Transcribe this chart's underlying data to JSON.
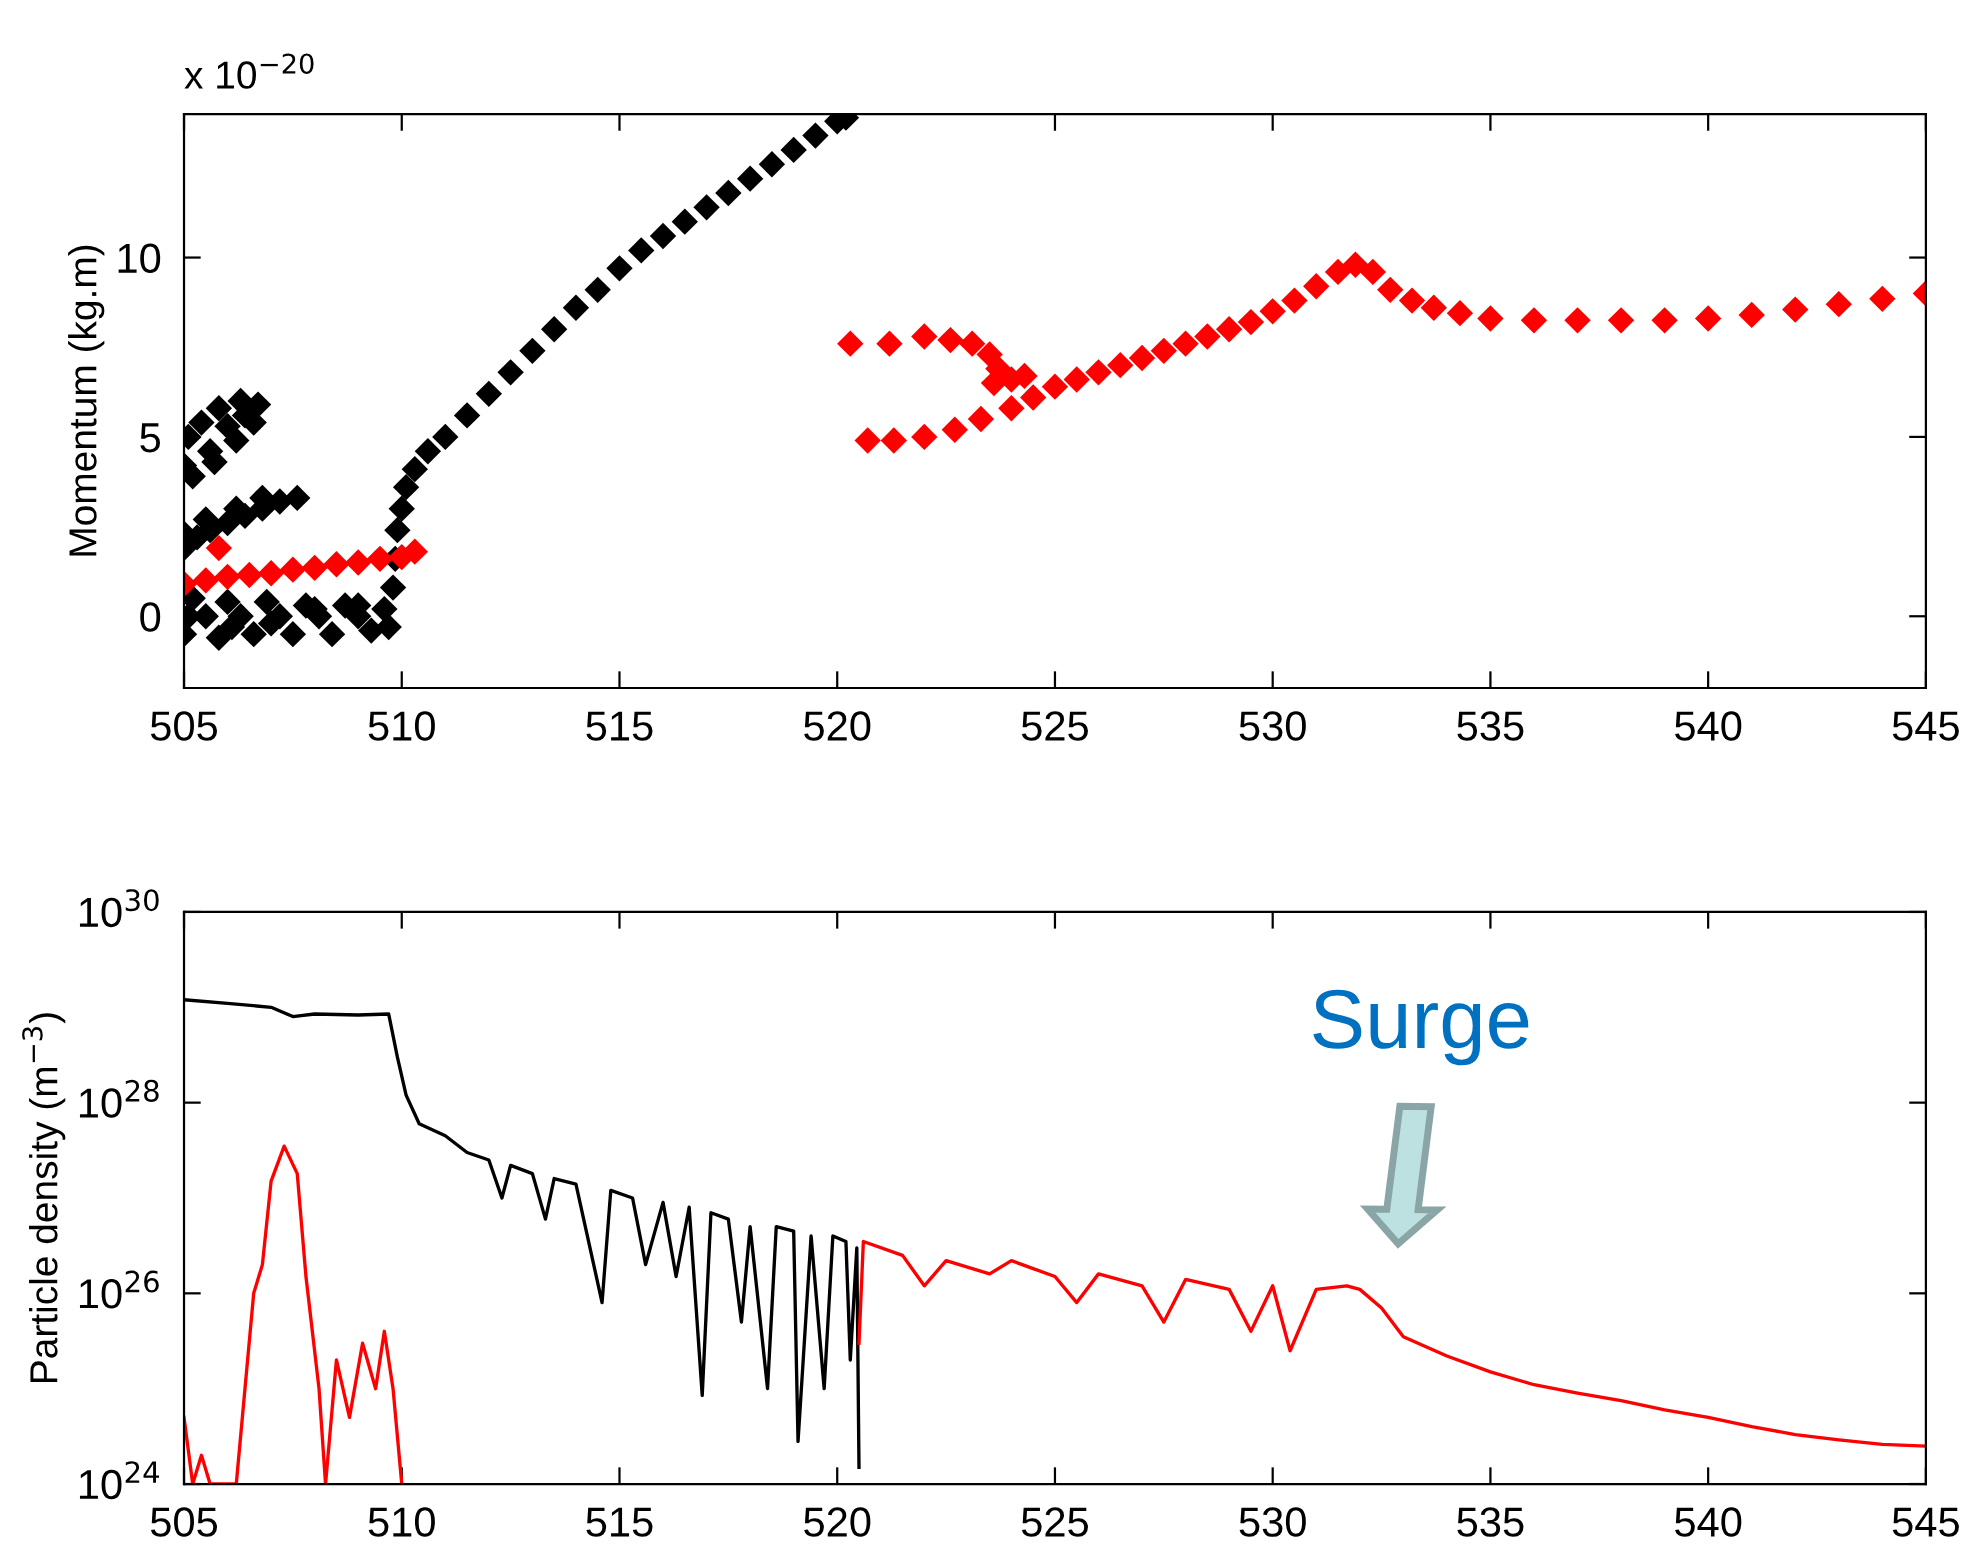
{
  "chart_data": [
    {
      "type": "scatter",
      "marker": "diamond",
      "ylabel": "Momentum (kg.m)",
      "annotations": [
        "x 10$^{−20}$"
      ],
      "xlim": [
        505,
        545
      ],
      "ylim": [
        -2,
        14
      ],
      "xticks": [
        505,
        510,
        515,
        520,
        525,
        530,
        535,
        540,
        545
      ],
      "yticks": [
        0,
        5,
        10
      ],
      "grid": false,
      "series": [
        {
          "color": "#000000",
          "x": [
            505,
            505.1,
            505.4,
            505.8,
            506.3,
            506.7,
            506.6,
            506.2,
            505.7,
            505.2,
            505.6,
            506.0,
            506.4,
            505,
            505.3,
            505.6,
            506,
            506.4,
            506.8,
            507.2,
            507.6,
            505,
            505.5,
            506.2,
            506.8,
            505,
            505.2,
            505.5,
            505.8,
            506,
            506.3,
            506.6,
            506.9,
            507.2,
            507.5,
            507.8,
            508.1,
            508.4,
            508.7,
            509,
            509.3,
            509.6,
            509.7,
            505.1,
            506.1,
            507,
            508,
            509,
            509.8,
            509.85,
            509.9,
            510,
            510.1,
            510.3,
            510.6,
            511,
            511.5,
            512,
            512.5,
            513,
            513.5,
            514,
            514.5,
            515,
            515.5,
            516,
            516.5,
            517,
            517.5,
            518,
            518.5,
            519,
            519.5,
            520,
            520.2
          ],
          "values": [
            4.2,
            5.0,
            5.4,
            5.8,
            6.0,
            5.9,
            5.4,
            4.9,
            4.3,
            3.9,
            4.6,
            5.3,
            5.6,
            1.9,
            2.2,
            2.4,
            2.6,
            2.8,
            3.0,
            3.2,
            3.3,
            2.3,
            2.7,
            3.0,
            3.3,
            -0.5,
            0.5,
            0,
            -0.6,
            0.4,
            0,
            -0.5,
            0.4,
            0,
            -0.5,
            0.3,
            0,
            -0.5,
            0.3,
            0,
            -0.4,
            0.2,
            -0.3,
            0,
            -0.3,
            -0.2,
            0.2,
            0.3,
            0.8,
            1.6,
            2.4,
            3.0,
            3.6,
            4.1,
            4.6,
            5.0,
            5.6,
            6.2,
            6.8,
            7.4,
            8.0,
            8.6,
            9.1,
            9.7,
            10.2,
            10.6,
            11.0,
            11.4,
            11.8,
            12.2,
            12.6,
            13.0,
            13.4,
            13.8,
            13.9
          ]
        },
        {
          "color": "#ff0000",
          "x": [
            505,
            505.5,
            506,
            506.5,
            507,
            507.5,
            508,
            508.5,
            509,
            509.5,
            510,
            510.3,
            505.8,
            520.3,
            521.2,
            522,
            522.6,
            523.1,
            523.5,
            523.7,
            523.6,
            524.0,
            524.3,
            520.7,
            521.3,
            522,
            522.7,
            523.3,
            524,
            524.5,
            525,
            525.5,
            526,
            526.5,
            527,
            527.5,
            528,
            528.5,
            529,
            529.5,
            530,
            530.5,
            531,
            531.5,
            531.9,
            532.3,
            532.7,
            533.2,
            533.7,
            534.3,
            535,
            536,
            537,
            538,
            539,
            540,
            541,
            542,
            543,
            544,
            545
          ],
          "values": [
            0.9,
            1.0,
            1.1,
            1.15,
            1.2,
            1.3,
            1.35,
            1.45,
            1.5,
            1.6,
            1.65,
            1.8,
            1.9,
            7.6,
            7.6,
            7.8,
            7.7,
            7.6,
            7.3,
            6.9,
            6.5,
            6.6,
            6.7,
            4.9,
            4.9,
            5.0,
            5.2,
            5.5,
            5.8,
            6.1,
            6.4,
            6.6,
            6.8,
            7.0,
            7.2,
            7.4,
            7.6,
            7.8,
            8.0,
            8.2,
            8.5,
            8.8,
            9.2,
            9.6,
            9.8,
            9.6,
            9.1,
            8.8,
            8.6,
            8.45,
            8.3,
            8.25,
            8.25,
            8.25,
            8.25,
            8.3,
            8.4,
            8.55,
            8.7,
            8.85,
            9.0
          ]
        }
      ]
    },
    {
      "type": "line",
      "log": true,
      "ylabel": "Particle density (m$^{−3}$)",
      "line_style": "solid",
      "xlim": [
        505,
        545
      ],
      "ylim": [
        1e+24,
        1e+30
      ],
      "xticks": [
        505,
        510,
        515,
        520,
        525,
        530,
        535,
        540,
        545
      ],
      "yticks": [
        {
          "value": 1e+24,
          "label": "10$^{24}$"
        },
        {
          "value": 1e+26,
          "label": "10$^{26}$"
        },
        {
          "value": 1e+28,
          "label": "10$^{28}$"
        },
        {
          "value": 1e+30,
          "label": "10$^{30}$"
        }
      ],
      "grid": false,
      "annotations": [
        "Surge"
      ],
      "series": [
        {
          "color": "#000000",
          "x": [
            505,
            506,
            507,
            507.5,
            508,
            509,
            509.7,
            509.9,
            510.1,
            510.4,
            511,
            511.5,
            512,
            512.3,
            512.5,
            513,
            513.3,
            513.5,
            514,
            514.6,
            514.8,
            515.3,
            515.6,
            516,
            516.3,
            516.6,
            516.9,
            517.1,
            517.5,
            517.8,
            518,
            518.4,
            518.6,
            519,
            519.1,
            519.4,
            519.7,
            519.9,
            520.2,
            520.3,
            520.45,
            520.5
          ],
          "values": [
            1.2e+29,
            1.1e+29,
            1e+29,
            8e+28,
            8.5e+28,
            8.3e+28,
            8.5e+28,
            3e+28,
            1.2e+28,
            6e+27,
            4.5e+27,
            3e+27,
            2.5e+27,
            1e+27,
            2.2e+27,
            1.8e+27,
            6e+26,
            1.6e+27,
            1.4e+27,
            8e+25,
            1.2e+27,
            1e+27,
            2e+26,
            9e+26,
            1.5e+26,
            8e+26,
            8.5e+24,
            7e+26,
            6e+26,
            5e+25,
            5e+26,
            1e+25,
            5e+26,
            4.5e+26,
            2.8e+24,
            4e+26,
            1e+25,
            4e+26,
            3.5e+26,
            2e+25,
            3e+26,
            1.5e+24
          ]
        },
        {
          "color": "#ff0000",
          "x": [
            505,
            505.2,
            505.4,
            505.6,
            506.2,
            506.4,
            506.6,
            506.8,
            507.0,
            507.3,
            507.6,
            507.8,
            508.1,
            508.25,
            508.5,
            508.8,
            509.1,
            509.4,
            509.6,
            509.8,
            510.0,
            515,
            520.5,
            520.6,
            521.5,
            522,
            522.5,
            523.5,
            524,
            525,
            525.5,
            526,
            527,
            527.5,
            528,
            529,
            529.5,
            530,
            530.4,
            531,
            531.7,
            532,
            532.5,
            533,
            534,
            535,
            536,
            537,
            538,
            539,
            540,
            541,
            542,
            543,
            544,
            545
          ],
          "values": [
            5e+24,
            1e+24,
            2e+24,
            1e+24,
            1e+24,
            1e+25,
            1e+26,
            2e+26,
            1.5e+27,
            3.5e+27,
            1.8e+27,
            1.5e+26,
            1e+25,
            1e+24,
            2e+25,
            5e+24,
            3e+25,
            1e+25,
            4e+25,
            1e+25,
            1e+24,
            null,
            3e+25,
            3.5e+26,
            2.5e+26,
            1.2e+26,
            2.2e+26,
            1.6e+26,
            2.2e+26,
            1.5e+26,
            8e+25,
            1.6e+26,
            1.2e+26,
            5e+25,
            1.4e+26,
            1.1e+26,
            4e+25,
            1.2e+26,
            2.5e+25,
            1.1e+26,
            1.2e+26,
            1.1e+26,
            7e+25,
            3.5e+25,
            2.2e+25,
            1.5e+25,
            1.1e+25,
            9e+24,
            7.5e+24,
            6e+24,
            5e+24,
            4e+24,
            3.3e+24,
            2.9e+24,
            2.6e+24,
            2.5e+24
          ]
        }
      ]
    }
  ]
}
